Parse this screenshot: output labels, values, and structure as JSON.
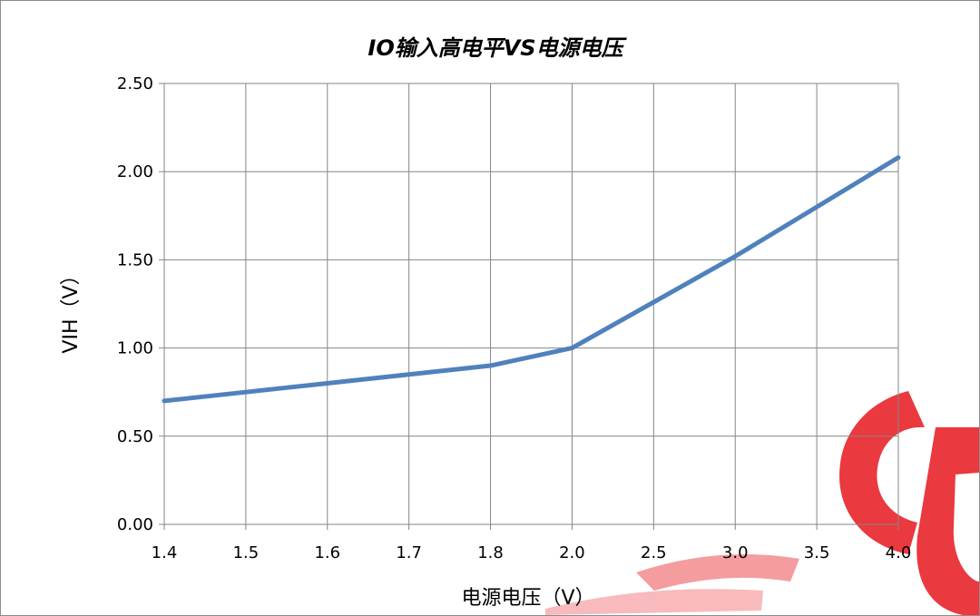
{
  "chart_data": {
    "type": "line",
    "title": "IO输入高电平VS电源电压",
    "xlabel": "电源电压（V）",
    "ylabel": "VIH（V）",
    "categories": [
      "1.4",
      "1.5",
      "1.6",
      "1.7",
      "1.8",
      "2.0",
      "2.5",
      "3.0",
      "3.5",
      "4.0"
    ],
    "series": [
      {
        "values": [
          0.7,
          0.75,
          0.8,
          0.85,
          0.9,
          1.0,
          1.26,
          1.52,
          1.8,
          2.08
        ]
      }
    ],
    "ylim": [
      0,
      2.5
    ],
    "yticks": [
      "0.00",
      "0.50",
      "1.00",
      "1.50",
      "2.00",
      "2.50"
    ],
    "grid": true,
    "legend": "none",
    "line_color": "#4F81BD",
    "grid_color": "#868686"
  },
  "watermark": {
    "text": "CU",
    "color": "#E8232A"
  }
}
